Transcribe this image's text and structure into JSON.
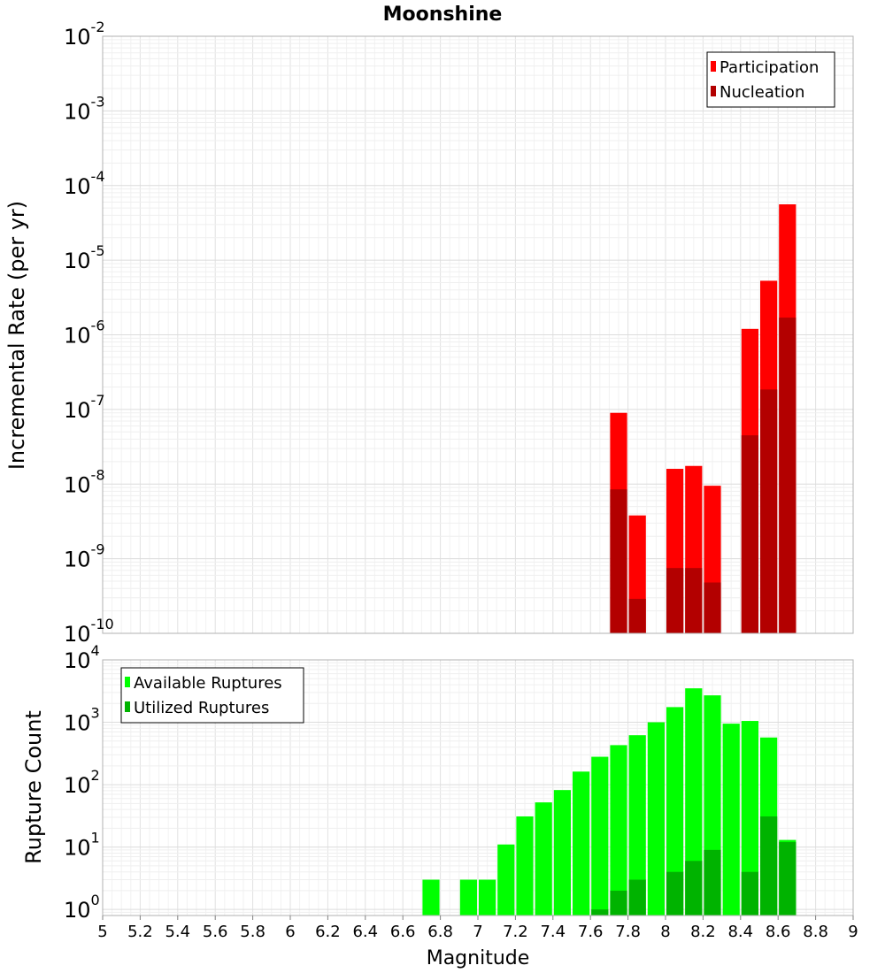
{
  "chart_data": [
    {
      "type": "bar",
      "title": "Moonshine",
      "ylabel": "Incremental Rate (per yr)",
      "yscale": "log",
      "ylim": [
        1e-10,
        0.01
      ],
      "xlim": [
        5,
        9
      ],
      "x": [
        7.75,
        7.85,
        8.05,
        8.15,
        8.25,
        8.45,
        8.55,
        8.65
      ],
      "series": [
        {
          "name": "Participation",
          "color": "#ff0000",
          "values": [
            9e-08,
            3.8e-09,
            1.6e-08,
            1.75e-08,
            9.5e-09,
            1.2e-06,
            5.3e-06,
            5.6e-05
          ]
        },
        {
          "name": "Nucleation",
          "color": "#b30000",
          "values": [
            8.5e-09,
            2.9e-10,
            7.5e-10,
            7.5e-10,
            4.8e-10,
            4.5e-08,
            1.85e-07,
            1.7e-06
          ]
        }
      ],
      "legend": "top-right",
      "grid": true
    },
    {
      "type": "bar",
      "ylabel": "Rupture Count",
      "xlabel": "Magnitude",
      "yscale": "log",
      "ylim": [
        0.8,
        10000
      ],
      "xlim": [
        5,
        9
      ],
      "xticks": [
        "5",
        "5.2",
        "5.4",
        "5.6",
        "5.8",
        "6",
        "6.2",
        "6.4",
        "6.6",
        "6.8",
        "7",
        "7.2",
        "7.4",
        "7.6",
        "7.8",
        "8",
        "8.2",
        "8.4",
        "8.6",
        "8.8",
        "9"
      ],
      "series": [
        {
          "name": "Available Ruptures",
          "color": "#00ff00",
          "x": [
            6.75,
            6.95,
            7.05,
            7.15,
            7.25,
            7.35,
            7.45,
            7.55,
            7.65,
            7.75,
            7.85,
            7.95,
            8.05,
            8.15,
            8.25,
            8.35,
            8.45,
            8.55,
            8.65
          ],
          "values": [
            3,
            3,
            3,
            11,
            31,
            52,
            82,
            162,
            280,
            430,
            620,
            1000,
            1750,
            3500,
            2700,
            950,
            1050,
            570,
            13
          ]
        },
        {
          "name": "Utilized Ruptures",
          "color": "#00b300",
          "x": [
            7.65,
            7.75,
            7.85,
            7.95,
            8.05,
            8.15,
            8.25,
            8.35,
            8.45,
            8.55,
            8.65
          ],
          "values": [
            1,
            2,
            3,
            0,
            4,
            6,
            9,
            0,
            4,
            31,
            12
          ]
        }
      ],
      "legend": "top-left",
      "grid": true
    }
  ]
}
